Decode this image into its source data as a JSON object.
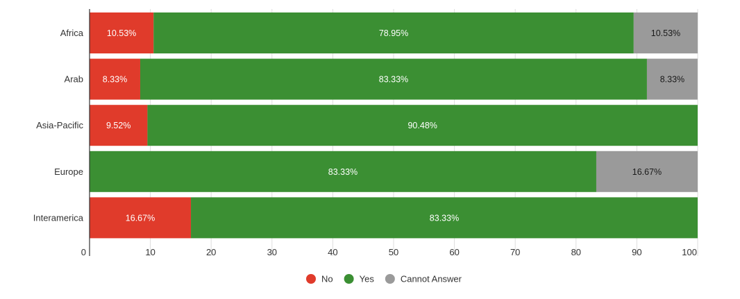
{
  "chart_data": {
    "type": "bar",
    "orientation": "horizontal",
    "stacked": true,
    "title": "",
    "xlabel": "",
    "ylabel": "",
    "xlim": [
      0,
      100
    ],
    "x_ticks": [
      0,
      10,
      20,
      30,
      40,
      50,
      60,
      70,
      80,
      90,
      100
    ],
    "grid": "vertical",
    "legend_position": "bottom-center",
    "categories": [
      "Africa",
      "Arab",
      "Asia-Pacific",
      "Europe",
      "Interamerica"
    ],
    "series": [
      {
        "name": "No",
        "color": "#e03b2b",
        "label_color": "#ffffff",
        "values": [
          10.53,
          8.33,
          9.52,
          0,
          16.67
        ],
        "labels": [
          "10.53%",
          "8.33%",
          "9.52%",
          "",
          "16.67%"
        ]
      },
      {
        "name": "Yes",
        "color": "#3b8f33",
        "label_color": "#ffffff",
        "values": [
          78.95,
          83.33,
          90.48,
          83.33,
          83.33
        ],
        "labels": [
          "78.95%",
          "83.33%",
          "90.48%",
          "83.33%",
          "83.33%"
        ]
      },
      {
        "name": "Cannot Answer",
        "color": "#9a9a9a",
        "label_color": "#1a1a1a",
        "values": [
          10.53,
          8.33,
          0,
          16.67,
          0
        ],
        "labels": [
          "10.53%",
          "8.33%",
          "",
          "16.67%",
          ""
        ]
      }
    ]
  }
}
